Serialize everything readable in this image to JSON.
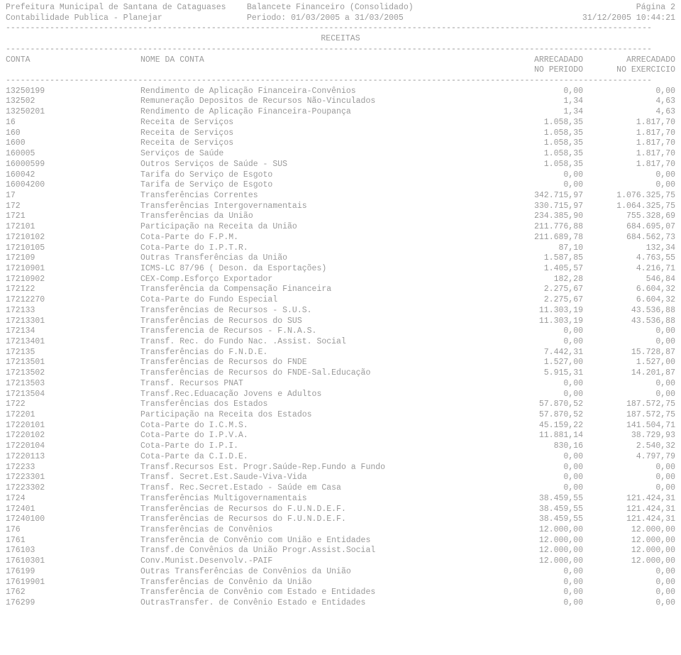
{
  "header": {
    "left1": "Prefeitura Municipal de Santana de Cataguases",
    "mid1": "Balancete Financeiro (Consolidado)",
    "right1": "Página 2",
    "left2": "Contabilidade Publica - Planejar",
    "mid2": "Periodo: 01/03/2005 a 31/03/2005",
    "right2": "31/12/2005 10:44:21"
  },
  "rule": "------------------------------------------------------------------------------------------------------------------------------------",
  "section_title": "RECEITAS",
  "col_head": {
    "c1a": "CONTA",
    "c2a": "NOME DA CONTA",
    "c3a": "ARRECADADO",
    "c4a": "ARRECADADO",
    "c3b": "NO PERIODO",
    "c4b": "NO EXERCICIO"
  },
  "rows": [
    {
      "code": "13250199",
      "name": "Rendimento de Aplicação Financeira-Convênios",
      "v1": "0,00",
      "v2": "0,00"
    },
    {
      "code": "132502",
      "name": "Remuneração Depositos de Recursos Não-Vinculados",
      "v1": "1,34",
      "v2": "4,63"
    },
    {
      "code": "13250201",
      "name": "Rendimento de Aplicação Financeira-Poupança",
      "v1": "1,34",
      "v2": "4,63"
    },
    {
      "code": "16",
      "name": "Receita de Serviços",
      "v1": "1.058,35",
      "v2": "1.817,70"
    },
    {
      "code": "160",
      "name": "Receita de Serviços",
      "v1": "1.058,35",
      "v2": "1.817,70"
    },
    {
      "code": "1600",
      "name": "Receita de Serviços",
      "v1": "1.058,35",
      "v2": "1.817,70"
    },
    {
      "code": "160005",
      "name": "Serviços de Saúde",
      "v1": "1.058,35",
      "v2": "1.817,70"
    },
    {
      "code": "16000599",
      "name": "Outros Serviços de Saúde - SUS",
      "v1": "1.058,35",
      "v2": "1.817,70"
    },
    {
      "code": "160042",
      "name": "Tarifa do Serviço de Esgoto",
      "v1": "0,00",
      "v2": "0,00"
    },
    {
      "code": "16004200",
      "name": "Tarifa de Serviço de Esgoto",
      "v1": "0,00",
      "v2": "0,00"
    },
    {
      "code": "17",
      "name": "Transferências Correntes",
      "v1": "342.715,97",
      "v2": "1.076.325,75"
    },
    {
      "code": "172",
      "name": "Transferências Intergovernamentais",
      "v1": "330.715,97",
      "v2": "1.064.325,75"
    },
    {
      "code": "1721",
      "name": "Transferências da União",
      "v1": "234.385,90",
      "v2": "755.328,69"
    },
    {
      "code": "172101",
      "name": "Participação na Receita da União",
      "v1": "211.776,88",
      "v2": "684.695,07"
    },
    {
      "code": "17210102",
      "name": "Cota-Parte do F.P.M.",
      "v1": "211.689,78",
      "v2": "684.562,73"
    },
    {
      "code": "17210105",
      "name": "Cota-Parte do I.P.T.R.",
      "v1": "87,10",
      "v2": "132,34"
    },
    {
      "code": "172109",
      "name": "Outras Transferências da União",
      "v1": "1.587,85",
      "v2": "4.763,55"
    },
    {
      "code": "17210901",
      "name": "ICMS-LC 87/96 ( Deson. da Esportações)",
      "v1": "1.405,57",
      "v2": "4.216,71"
    },
    {
      "code": "17210902",
      "name": "CEX-Comp.Esforço Exportador",
      "v1": "182,28",
      "v2": "546,84"
    },
    {
      "code": "172122",
      "name": "Transferência da Compensação Financeira",
      "v1": "2.275,67",
      "v2": "6.604,32"
    },
    {
      "code": "17212270",
      "name": "Cota-Parte do Fundo Especial",
      "v1": "2.275,67",
      "v2": "6.604,32"
    },
    {
      "code": "172133",
      "name": "Transferências de Recursos - S.U.S.",
      "v1": "11.303,19",
      "v2": "43.536,88"
    },
    {
      "code": "17213301",
      "name": "Transferências de Recursos do SUS",
      "v1": "11.303,19",
      "v2": "43.536,88"
    },
    {
      "code": "172134",
      "name": "Transferencia de Recursos - F.N.A.S.",
      "v1": "0,00",
      "v2": "0,00"
    },
    {
      "code": "17213401",
      "name": "Transf. Rec. do Fundo Nac. .Assist. Social",
      "v1": "0,00",
      "v2": "0,00"
    },
    {
      "code": "172135",
      "name": "Transferências do F.N.D.E.",
      "v1": "7.442,31",
      "v2": "15.728,87"
    },
    {
      "code": "17213501",
      "name": "Transferências de Recursos do FNDE",
      "v1": "1.527,00",
      "v2": "1.527,00"
    },
    {
      "code": "17213502",
      "name": "Transferências de Recursos do FNDE-Sal.Educação",
      "v1": "5.915,31",
      "v2": "14.201,87"
    },
    {
      "code": "17213503",
      "name": "Transf. Recursos PNAT",
      "v1": "0,00",
      "v2": "0,00"
    },
    {
      "code": "17213504",
      "name": "Transf.Rec.Eduacação Jovens e Adultos",
      "v1": "0,00",
      "v2": "0,00"
    },
    {
      "code": "1722",
      "name": "Transferências dos Estados",
      "v1": "57.870,52",
      "v2": "187.572,75"
    },
    {
      "code": "172201",
      "name": "Participação na Receita dos Estados",
      "v1": "57.870,52",
      "v2": "187.572,75"
    },
    {
      "code": "17220101",
      "name": "Cota-Parte do I.C.M.S.",
      "v1": "45.159,22",
      "v2": "141.504,71"
    },
    {
      "code": "17220102",
      "name": "Cota-Parte do I.P.V.A.",
      "v1": "11.881,14",
      "v2": "38.729,93"
    },
    {
      "code": "17220104",
      "name": "Cota-Parte do I.P.I.",
      "v1": "830,16",
      "v2": "2.540,32"
    },
    {
      "code": "17220113",
      "name": "Cota-Parte da C.I.D.E.",
      "v1": "0,00",
      "v2": "4.797,79"
    },
    {
      "code": "172233",
      "name": "Transf.Recursos Est. Progr.Saúde-Rep.Fundo a Fundo",
      "v1": "0,00",
      "v2": "0,00"
    },
    {
      "code": "17223301",
      "name": "Transf. Secret.Est.Saude-Viva-Vida",
      "v1": "0,00",
      "v2": "0,00"
    },
    {
      "code": "17223302",
      "name": "Transf. Rec.Secret.Estado - Saúde em Casa",
      "v1": "0,00",
      "v2": "0,00"
    },
    {
      "code": "1724",
      "name": "Transferências Multigovernamentais",
      "v1": "38.459,55",
      "v2": "121.424,31"
    },
    {
      "code": "172401",
      "name": "Transferências de Recursos do F.U.N.D.E.F.",
      "v1": "38.459,55",
      "v2": "121.424,31"
    },
    {
      "code": "17240100",
      "name": "Transferências de Recursos do F.U.N.D.E.F.",
      "v1": "38.459,55",
      "v2": "121.424,31"
    },
    {
      "code": "176",
      "name": "Transferências de Convênios",
      "v1": "12.000,00",
      "v2": "12.000,00"
    },
    {
      "code": "1761",
      "name": "Transferência de Convênio com União e Entidades",
      "v1": "12.000,00",
      "v2": "12.000,00"
    },
    {
      "code": "176103",
      "name": "Transf.de Convênios da União Progr.Assist.Social",
      "v1": "12.000,00",
      "v2": "12.000,00"
    },
    {
      "code": "17610301",
      "name": "Conv.Munist.Desenvolv.-PAIF",
      "v1": "12.000,00",
      "v2": "12.000,00"
    },
    {
      "code": "176199",
      "name": "Outras Transferências de Convênios da União",
      "v1": "0,00",
      "v2": "0,00"
    },
    {
      "code": "17619901",
      "name": "Transferências de Convênio da União",
      "v1": "0,00",
      "v2": "0,00"
    },
    {
      "code": "1762",
      "name": "Transferência de Convênio com Estado e Entidades",
      "v1": "0,00",
      "v2": "0,00"
    },
    {
      "code": "176299",
      "name": "OutrasTransfer. de Convênio Estado e Entidades",
      "v1": "0,00",
      "v2": "0,00"
    }
  ]
}
